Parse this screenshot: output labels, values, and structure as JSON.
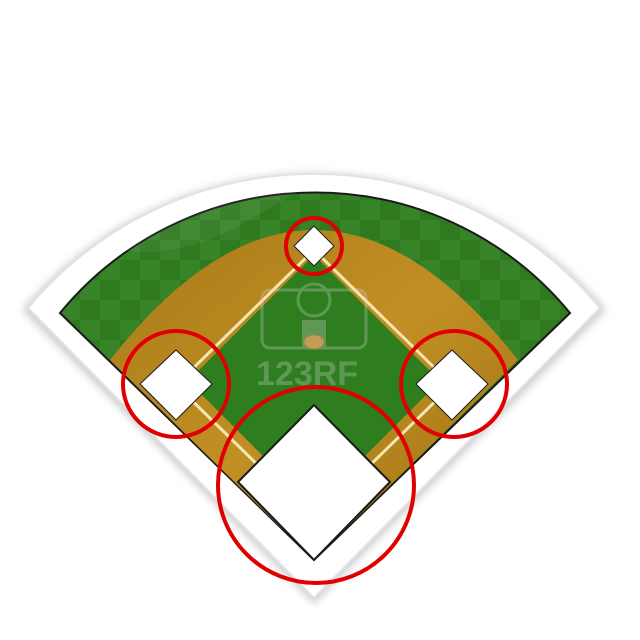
{
  "watermark": {
    "text": "123RF"
  },
  "colors": {
    "background": "#ffffff",
    "outfield_grass": "#2f7a1f",
    "outfield_check": "#3e8a2e",
    "infield_grass": "#2e7d1f",
    "dirt": "#b8861f",
    "dirt_dark": "#8f6410",
    "foul_line": "#f3e6b0",
    "base": "#ffffff",
    "outline": "#1a1a1a",
    "highlight_circle": "#e00000",
    "shadow": "#cfcfcf"
  },
  "icons": {
    "field": "baseball-diamond",
    "watermark": "camera-logo"
  },
  "highlights": [
    {
      "target": "second-base"
    },
    {
      "target": "third-base"
    },
    {
      "target": "first-base"
    },
    {
      "target": "home-plate"
    }
  ]
}
